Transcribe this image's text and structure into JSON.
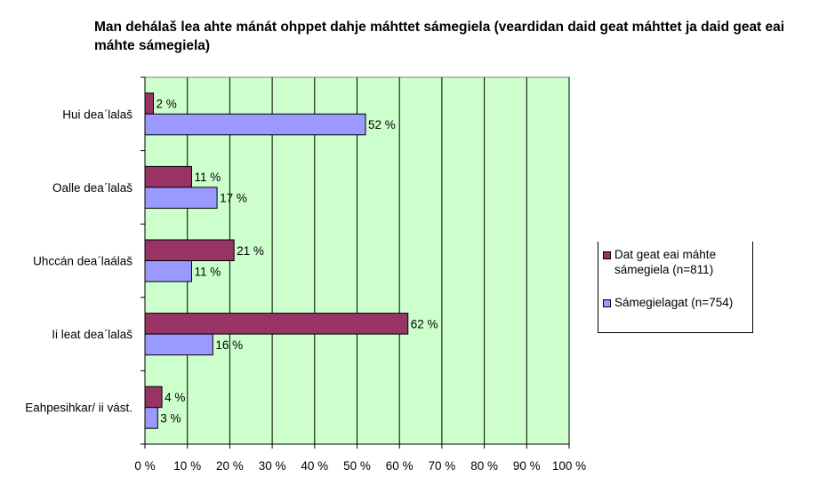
{
  "title": "Man dehálaš lea ahte mánát ohppet dahje máhttet sámegiela (veardidan daid geat máhttet ja  daid geat eai máhte sámegiela)",
  "chart_data": {
    "type": "bar",
    "orientation": "horizontal",
    "title": "Man dehálaš lea ahte mánát ohppet dahje máhttet sámegiela (veardidan daid geat máhttet ja  daid geat eai máhte sámegiela)",
    "categories": [
      "Hui deaˊlalaš",
      "Oalle deaˊlalaš",
      "Uhccán deaˊlaálaš",
      "Ii leat deaˊlalaš",
      "Eahpesihkar/ ii vást."
    ],
    "series": [
      {
        "name": "Dat geat eai máhte sámegiela (n=811)",
        "color": "#993366",
        "values": [
          2,
          11,
          21,
          62,
          4
        ]
      },
      {
        "name": "Sámegielagat (n=754)",
        "color": "#9999ff",
        "values": [
          52,
          17,
          11,
          16,
          3
        ]
      }
    ],
    "data_labels": [
      [
        "2 %",
        "11 %",
        "21 %",
        "62 %",
        "4 %"
      ],
      [
        "52 %",
        "17 %",
        "11 %",
        "16 %",
        "3 %"
      ]
    ],
    "xlim": [
      0,
      100
    ],
    "xticks": [
      "0 %",
      "10 %",
      "20 %",
      "30 %",
      "40 %",
      "50 %",
      "60 %",
      "70 %",
      "80 %",
      "90 %",
      "100 %"
    ],
    "grid": true,
    "plot_background": "#ccffcc",
    "legend_position": "right"
  }
}
